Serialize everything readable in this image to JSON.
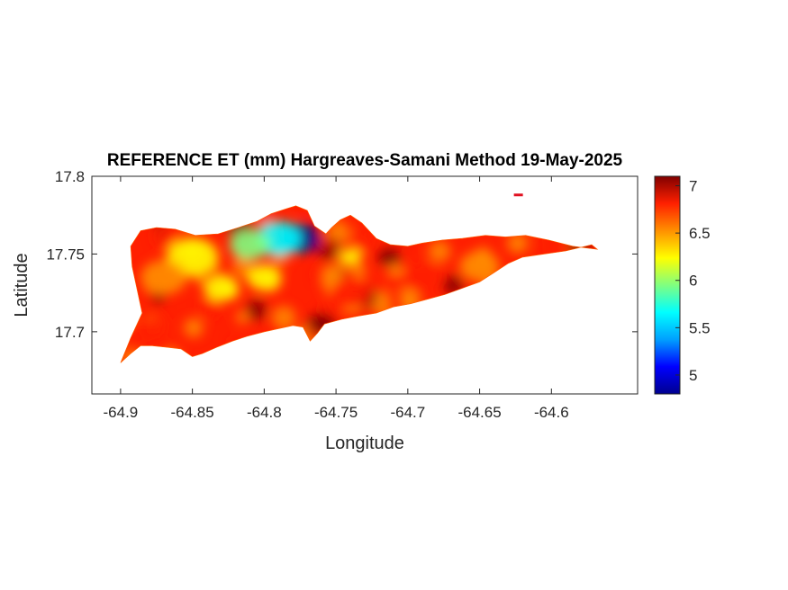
{
  "title": "REFERENCE ET (mm) Hargreaves-Samani Method  19-May-2025",
  "colormap": [
    "#00008f",
    "#0000ff",
    "#00a0ff",
    "#00ffff",
    "#80ff80",
    "#ffff00",
    "#ff9000",
    "#ff2000",
    "#800000"
  ],
  "chart_data": {
    "type": "heatmap",
    "title": "REFERENCE ET (mm) Hargreaves-Samani Method  19-May-2025",
    "xlabel": "Longitude",
    "ylabel": "Latitude",
    "xlim": [
      -64.92,
      -64.54
    ],
    "ylim": [
      17.66,
      17.8
    ],
    "xticks": [
      -64.9,
      -64.85,
      -64.8,
      -64.75,
      -64.7,
      -64.65,
      -64.6
    ],
    "xtick_labels": [
      "-64.9",
      "-64.85",
      "-64.8",
      "-64.75",
      "-64.7",
      "-64.65",
      "-64.6"
    ],
    "yticks": [
      17.7,
      17.75,
      17.8
    ],
    "ytick_labels": [
      "17.7",
      "17.75",
      "17.8"
    ],
    "colorbar": {
      "range": [
        4.8,
        7.1
      ],
      "ticks": [
        5,
        5.5,
        6,
        6.5,
        7
      ],
      "tick_labels": [
        "5",
        "5.5",
        "6",
        "6.5",
        "7"
      ]
    },
    "island_outline": [
      [
        -64.9,
        17.68
      ],
      [
        -64.893,
        17.686
      ],
      [
        -64.886,
        17.691
      ],
      [
        -64.878,
        17.691
      ],
      [
        -64.868,
        17.69
      ],
      [
        -64.858,
        17.689
      ],
      [
        -64.85,
        17.684
      ],
      [
        -64.843,
        17.686
      ],
      [
        -64.833,
        17.69
      ],
      [
        -64.822,
        17.694
      ],
      [
        -64.812,
        17.697
      ],
      [
        -64.8,
        17.7
      ],
      [
        -64.79,
        17.702
      ],
      [
        -64.78,
        17.704
      ],
      [
        -64.773,
        17.703
      ],
      [
        -64.768,
        17.694
      ],
      [
        -64.763,
        17.699
      ],
      [
        -64.758,
        17.705
      ],
      [
        -64.746,
        17.708
      ],
      [
        -64.735,
        17.71
      ],
      [
        -64.722,
        17.712
      ],
      [
        -64.71,
        17.716
      ],
      [
        -64.698,
        17.718
      ],
      [
        -64.686,
        17.721
      ],
      [
        -64.674,
        17.724
      ],
      [
        -64.662,
        17.728
      ],
      [
        -64.65,
        17.732
      ],
      [
        -64.64,
        17.738
      ],
      [
        -64.63,
        17.744
      ],
      [
        -64.62,
        17.748
      ],
      [
        -64.605,
        17.75
      ],
      [
        -64.59,
        17.752
      ],
      [
        -64.572,
        17.756
      ],
      [
        -64.568,
        17.753
      ],
      [
        -64.585,
        17.755
      ],
      [
        -64.602,
        17.759
      ],
      [
        -64.618,
        17.762
      ],
      [
        -64.632,
        17.761
      ],
      [
        -64.646,
        17.762
      ],
      [
        -64.662,
        17.76
      ],
      [
        -64.676,
        17.759
      ],
      [
        -64.69,
        17.757
      ],
      [
        -64.7,
        17.755
      ],
      [
        -64.712,
        17.756
      ],
      [
        -64.722,
        17.76
      ],
      [
        -64.732,
        17.77
      ],
      [
        -64.74,
        17.775
      ],
      [
        -64.747,
        17.772
      ],
      [
        -64.753,
        17.767
      ],
      [
        -64.757,
        17.763
      ],
      [
        -64.765,
        17.768
      ],
      [
        -64.77,
        17.778
      ],
      [
        -64.778,
        17.781
      ],
      [
        -64.785,
        17.779
      ],
      [
        -64.795,
        17.776
      ],
      [
        -64.805,
        17.771
      ],
      [
        -64.818,
        17.767
      ],
      [
        -64.832,
        17.763
      ],
      [
        -64.848,
        17.762
      ],
      [
        -64.862,
        17.766
      ],
      [
        -64.875,
        17.767
      ],
      [
        -64.886,
        17.765
      ],
      [
        -64.893,
        17.755
      ],
      [
        -64.892,
        17.742
      ],
      [
        -64.888,
        17.725
      ],
      [
        -64.885,
        17.712
      ],
      [
        -64.893,
        17.696
      ],
      [
        -64.9,
        17.68
      ]
    ],
    "islet": [
      -64.623,
      17.788
    ],
    "hotspots": [
      {
        "lon": -64.775,
        "lat": 17.76,
        "value": 4.9,
        "radius": 0.014
      },
      {
        "lon": -64.79,
        "lat": 17.76,
        "value": 5.6,
        "radius": 0.016
      },
      {
        "lon": -64.81,
        "lat": 17.756,
        "value": 5.9,
        "radius": 0.014
      },
      {
        "lon": -64.85,
        "lat": 17.748,
        "value": 6.1,
        "radius": 0.018
      },
      {
        "lon": -64.83,
        "lat": 17.728,
        "value": 6.2,
        "radius": 0.012
      },
      {
        "lon": -64.87,
        "lat": 17.735,
        "value": 6.4,
        "radius": 0.016
      },
      {
        "lon": -64.8,
        "lat": 17.735,
        "value": 6.3,
        "radius": 0.012
      },
      {
        "lon": -64.74,
        "lat": 17.748,
        "value": 6.3,
        "radius": 0.008
      },
      {
        "lon": -64.76,
        "lat": 17.705,
        "value": 7.05,
        "radius": 0.01
      },
      {
        "lon": -64.713,
        "lat": 17.748,
        "value": 7.0,
        "radius": 0.008
      },
      {
        "lon": -64.69,
        "lat": 17.735,
        "value": 6.85,
        "radius": 0.014
      },
      {
        "lon": -64.74,
        "lat": 17.725,
        "value": 6.9,
        "radius": 0.014
      },
      {
        "lon": -64.65,
        "lat": 17.742,
        "value": 6.6,
        "radius": 0.014
      },
      {
        "lon": -64.6,
        "lat": 17.752,
        "value": 6.9,
        "radius": 0.01
      },
      {
        "lon": -64.58,
        "lat": 17.755,
        "value": 7.0,
        "radius": 0.008
      },
      {
        "lon": -64.88,
        "lat": 17.7,
        "value": 6.75,
        "radius": 0.01
      }
    ],
    "background_value": 6.7
  }
}
